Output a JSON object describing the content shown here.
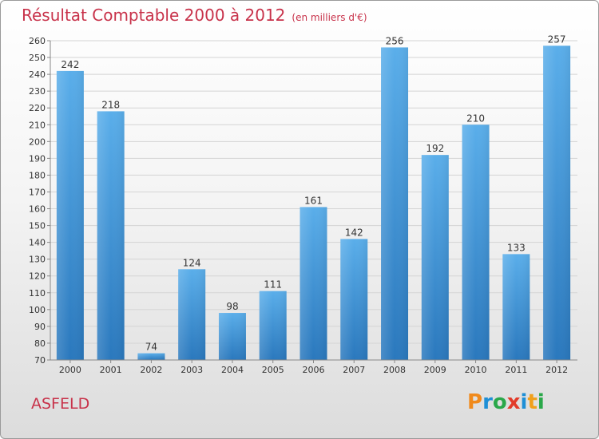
{
  "title": "Résultat Comptable 2000 à 2012",
  "subtitle": "(en milliers d'€)",
  "commune": "ASFELD",
  "logo": {
    "letters": [
      "P",
      "r",
      "o",
      "x",
      "i",
      "t",
      "i"
    ],
    "colors": [
      "#f08a1c",
      "#1e8fd6",
      "#2aa84a",
      "#e23b2a",
      "#1e8fd6",
      "#f0a01c",
      "#2aa84a"
    ]
  },
  "chart_data": {
    "type": "bar",
    "title": "Résultat Comptable 2000 à 2012",
    "subtitle": "(en milliers d'€)",
    "categories": [
      "2000",
      "2001",
      "2002",
      "2003",
      "2004",
      "2005",
      "2006",
      "2007",
      "2008",
      "2009",
      "2010",
      "2011",
      "2012"
    ],
    "values": [
      242,
      218,
      74,
      124,
      98,
      111,
      161,
      142,
      256,
      192,
      210,
      133,
      257
    ],
    "ylim": [
      70,
      260
    ],
    "yticks": [
      70,
      80,
      90,
      100,
      110,
      120,
      130,
      140,
      150,
      160,
      170,
      180,
      190,
      200,
      210,
      220,
      230,
      240,
      250,
      260
    ],
    "grid": true,
    "bar_color": "#3d93d9"
  }
}
